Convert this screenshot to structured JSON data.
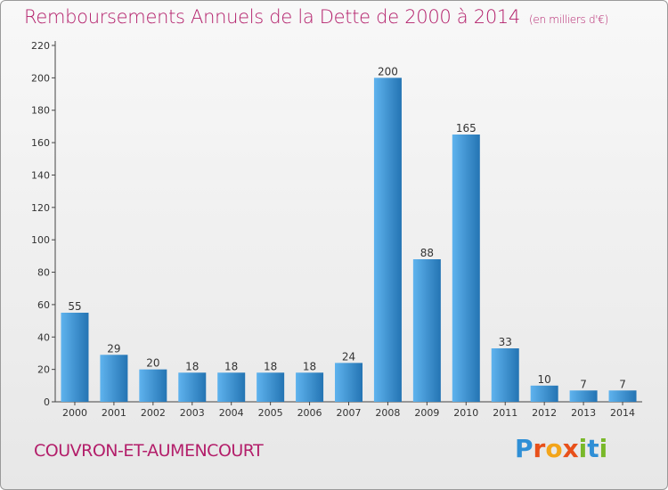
{
  "title": "Remboursements Annuels de la Dette de 2000 à 2014",
  "unit_note": "(en milliers d'€)",
  "commune": "COUVRON-ET-AUMENCOURT",
  "logo": {
    "text": "Proxiti",
    "letter_colors": [
      "#2f8fd6",
      "#e8501a",
      "#f3a51a",
      "#e8501a",
      "#79b82a",
      "#2f8fd6",
      "#79b82a"
    ]
  },
  "colors": {
    "title": "#b31e6a",
    "bar_light": "#5fb3ee",
    "bar_dark": "#2474b3"
  },
  "chart_data": {
    "type": "bar",
    "title": "Remboursements Annuels de la Dette de 2000 à 2014",
    "xlabel": "",
    "ylabel": "",
    "categories": [
      "2000",
      "2001",
      "2002",
      "2003",
      "2004",
      "2005",
      "2006",
      "2007",
      "2008",
      "2009",
      "2010",
      "2011",
      "2012",
      "2013",
      "2014"
    ],
    "values": [
      55,
      29,
      20,
      18,
      18,
      18,
      18,
      24,
      200,
      88,
      165,
      33,
      10,
      7,
      7
    ],
    "value_labels": [
      "55",
      "29",
      "20",
      "18",
      "18",
      "18",
      "18",
      "24",
      "200",
      "88",
      "165",
      "33",
      "10",
      "7",
      "7"
    ],
    "ylim": [
      0,
      220
    ],
    "yticks": [
      0,
      20,
      40,
      60,
      80,
      100,
      120,
      140,
      160,
      180,
      200,
      220
    ],
    "grid": false,
    "legend": "none"
  }
}
